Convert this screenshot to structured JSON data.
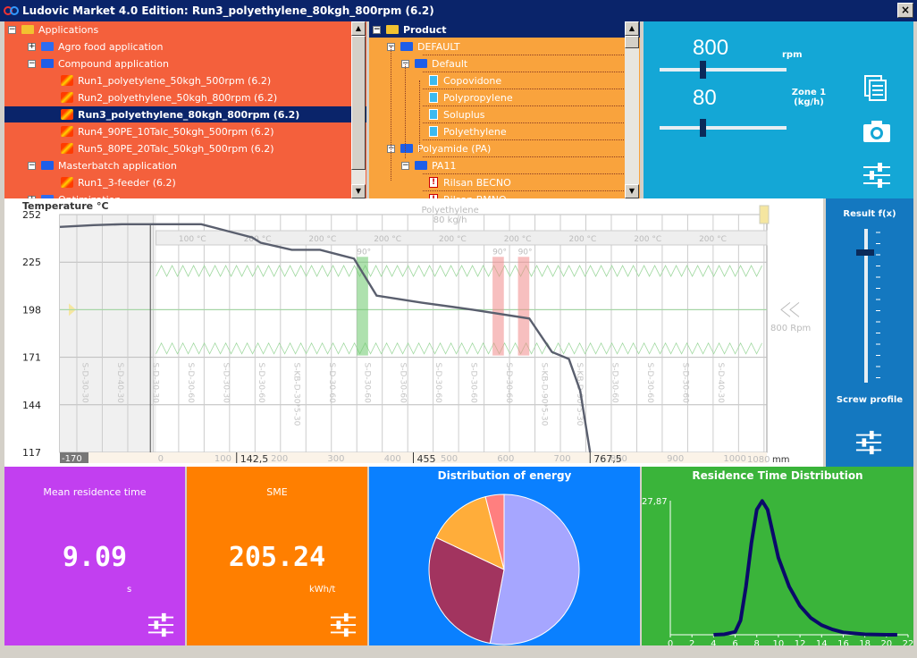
{
  "window": {
    "title": "Ludovic Market 4.0 Edition: Run3_polyethylene_80kgh_800rpm (6.2)",
    "close_glyph": "×"
  },
  "app_tree": {
    "items": [
      {
        "label": "Applications",
        "level": 0,
        "expander": "−",
        "icon": "folder-yellow"
      },
      {
        "label": "Agro food application",
        "level": 1,
        "expander": "+",
        "icon": "folder"
      },
      {
        "label": "Compound application",
        "level": 1,
        "expander": "−",
        "icon": "folder-open"
      },
      {
        "label": "Run1_polyetylene_50kgh_500rpm (6.2)",
        "level": 2,
        "icon": "run"
      },
      {
        "label": "Run2_polyethylene_50kgh_800rpm (6.2)",
        "level": 2,
        "icon": "run"
      },
      {
        "label": "Run3_polyethylene_80kgh_800rpm (6.2)",
        "level": 2,
        "icon": "run",
        "selected": true
      },
      {
        "label": "Run4_90PE_10Talc_50kgh_500rpm (6.2)",
        "level": 2,
        "icon": "run"
      },
      {
        "label": "Run5_80PE_20Talc_50kgh_500rpm (6.2)",
        "level": 2,
        "icon": "run"
      },
      {
        "label": "Masterbatch application",
        "level": 1,
        "expander": "−",
        "icon": "folder-open"
      },
      {
        "label": "Run1_3-feeder (6.2)",
        "level": 2,
        "icon": "run"
      },
      {
        "label": "Optimization...",
        "level": 1,
        "expander": "+",
        "icon": "folder"
      }
    ]
  },
  "product_tree": {
    "items": [
      {
        "label": "Product",
        "level": 0,
        "expander": "−",
        "icon": "folder-yellow",
        "header": true
      },
      {
        "label": "DEFAULT",
        "level": 1,
        "expander": "−",
        "icon": "folder-open"
      },
      {
        "label": "Default",
        "level": 2,
        "expander": "−",
        "icon": "folder-open"
      },
      {
        "label": "Copovidone",
        "level": 3,
        "icon": "doc"
      },
      {
        "label": "Polypropylene",
        "level": 3,
        "icon": "doc"
      },
      {
        "label": "Soluplus",
        "level": 3,
        "icon": "doc"
      },
      {
        "label": "Polyethylene",
        "level": 3,
        "icon": "doc"
      },
      {
        "label": "Polyamide (PA)",
        "level": 1,
        "expander": "−",
        "icon": "folder-open"
      },
      {
        "label": "PA11",
        "level": 2,
        "expander": "−",
        "icon": "folder-open"
      },
      {
        "label": "Rilsan BECNO",
        "level": 3,
        "icon": "warn"
      },
      {
        "label": "Rilsan BMNO",
        "level": 3,
        "icon": "warn"
      }
    ]
  },
  "controls": {
    "rpm_value": "800",
    "rpm_unit": "rpm",
    "feed_value": "80",
    "feed_label_1": "Zone 1",
    "feed_label_2": "(kg/h)",
    "icons": [
      "clipboard-icon",
      "camera-icon",
      "sliders-icon"
    ]
  },
  "result_panel": {
    "title": "Result f(x)",
    "subtitle": "Screw profile"
  },
  "temp_chart": {
    "title": "Temperature °C",
    "material": "Polyethylene",
    "feed": "80 kg/h",
    "speed": "800 Rpm",
    "y_ticks": [
      "252",
      "225",
      "198",
      "171",
      "144",
      "117"
    ],
    "x_ticks": [
      "-170",
      "0",
      "100",
      "200",
      "300",
      "400",
      "500",
      "600",
      "700",
      "800",
      "900",
      "1000"
    ],
    "x_markers": [
      "142,5",
      "455",
      "767,5"
    ],
    "x_end": "1080",
    "x_unit": "mm",
    "angle_labels": [
      "90°",
      "90°",
      "90°"
    ],
    "element_labels": [
      "S-D-30-30",
      "S-D-40-30",
      "S-D-30-30",
      "S-D-30-60",
      "S-D-30-30",
      "S-D-30-60",
      "S-KB-D-30*5-30",
      "S-D-30-60",
      "S-D-30-60",
      "S-D-30-60",
      "S-D-30-60",
      "S-D-30-60",
      "S-D-30-60",
      "S-KB-D-90*5-30",
      "S-KB-D-90*5-30",
      "S-D-30-60",
      "S-D-30-60",
      "S-D-30-60",
      "S-D-40-30"
    ],
    "barrel_labels": [
      "100 °C",
      "200 °C",
      "200 °C",
      "200 °C",
      "200 °C",
      "200 °C",
      "200 °C",
      "200 °C",
      "200 °C"
    ],
    "chart_data": {
      "type": "line",
      "xlim": [
        -170,
        1080
      ],
      "ylim": [
        117,
        252
      ],
      "x": [
        -170,
        -110,
        -60,
        0,
        80,
        170,
        185,
        240,
        290,
        350,
        390,
        470,
        560,
        660,
        700,
        730,
        750,
        767.5
      ],
      "y": [
        245,
        246,
        246.5,
        246.5,
        246.5,
        239,
        236,
        232,
        232,
        227,
        206,
        202,
        198,
        193,
        174,
        170,
        152,
        117
      ]
    }
  },
  "mean_residence": {
    "label": "Mean residence time",
    "value": "9.09",
    "unit": "s"
  },
  "sme": {
    "label": "SME",
    "value": "205.24",
    "unit": "kWh/t"
  },
  "energy": {
    "title": "Distribution of energy",
    "chart_data": {
      "type": "pie",
      "values": [
        53,
        29,
        14,
        4
      ],
      "colors": [
        "#a6a6ff",
        "#a2345f",
        "#ffad3a",
        "#ff7f7f"
      ]
    }
  },
  "rtd": {
    "title": "Residence Time Distribution",
    "ymax_label": "27,87",
    "chart_data": {
      "type": "line",
      "x_ticks": [
        "0",
        "2",
        "4",
        "6",
        "8",
        "10",
        "12",
        "14",
        "16",
        "18",
        "20",
        "22"
      ],
      "xlim": [
        0,
        22
      ],
      "ylim": [
        0,
        27.87
      ],
      "x": [
        4,
        5,
        6,
        6.5,
        7,
        7.5,
        8,
        8.5,
        9,
        9.5,
        10,
        11,
        12,
        13,
        14,
        15,
        16,
        18,
        20,
        21
      ],
      "y": [
        0,
        0.1,
        0.6,
        3,
        10,
        19,
        26,
        27.8,
        26,
        21,
        16,
        10,
        6,
        3.5,
        2,
        1.1,
        0.5,
        0.1,
        0,
        0
      ]
    }
  }
}
